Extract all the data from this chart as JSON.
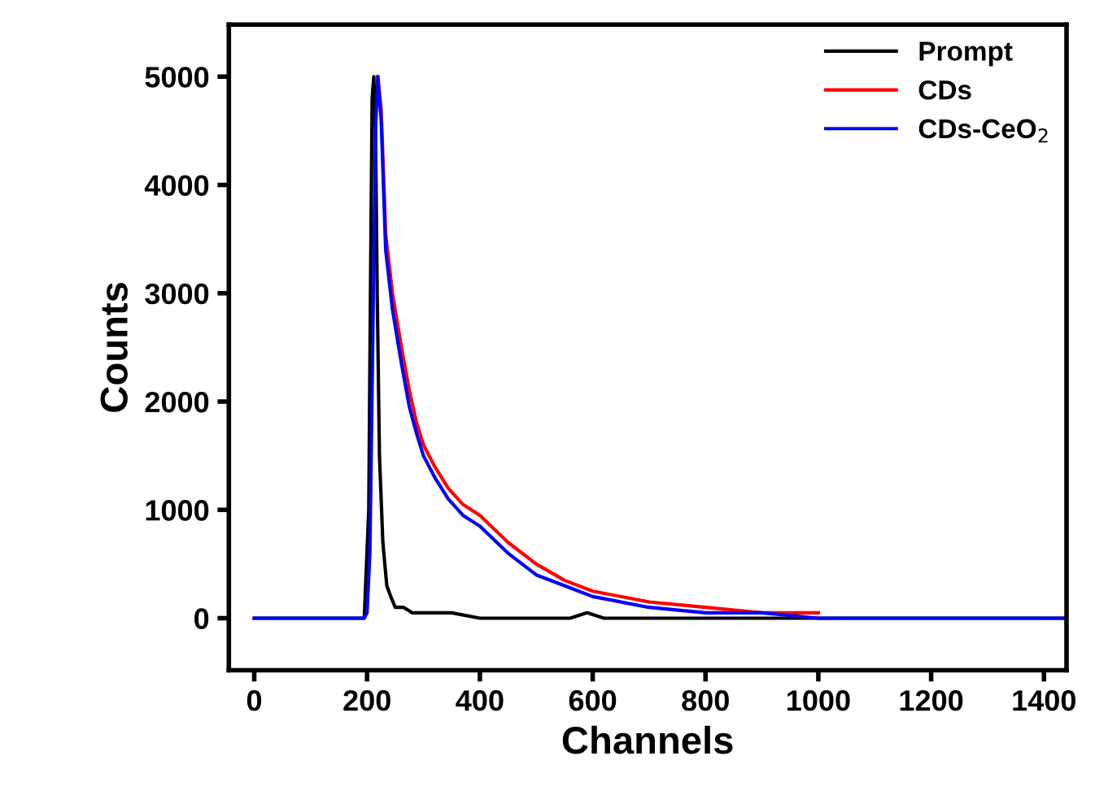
{
  "chart_data": {
    "type": "line",
    "xlabel": "Channels",
    "ylabel": "Counts",
    "xlim": [
      -45,
      1440
    ],
    "ylim": [
      -480,
      5480
    ],
    "xticks": [
      0,
      200,
      400,
      600,
      800,
      1000,
      1200,
      1400
    ],
    "yticks": [
      0,
      1000,
      2000,
      3000,
      4000,
      5000
    ],
    "grid": false,
    "legend": "top right",
    "marker": "none",
    "line_style": "solid",
    "series": [
      {
        "name": "Prompt",
        "color": "#000000",
        "x": [
          0,
          195,
          203,
          206,
          209,
          212,
          215,
          218,
          222,
          228,
          235,
          242,
          250,
          265,
          280,
          300,
          350,
          400,
          500,
          560,
          590,
          620,
          700,
          800,
          1000,
          1200,
          1440
        ],
        "values": [
          0,
          0,
          1000,
          3000,
          4800,
          5000,
          4500,
          3000,
          1500,
          700,
          300,
          200,
          100,
          100,
          50,
          50,
          50,
          0,
          0,
          0,
          50,
          0,
          0,
          0,
          0,
          0,
          0
        ]
      },
      {
        "name": "CDs",
        "color": "#ff0000",
        "x": [
          219,
          225,
          233,
          245,
          261,
          275,
          288,
          300,
          320,
          344,
          370,
          400,
          450,
          500,
          550,
          600,
          700,
          800,
          900,
          1000
        ],
        "values": [
          5000,
          4700,
          3550,
          3000,
          2500,
          2100,
          1800,
          1600,
          1400,
          1200,
          1050,
          950,
          700,
          500,
          350,
          250,
          150,
          100,
          50,
          50
        ]
      },
      {
        "name": "CDs-CeO$_{2}$",
        "color": "#0000ff",
        "x": [
          0,
          195,
          200,
          205,
          210,
          215,
          219,
          225,
          233,
          245,
          261,
          275,
          288,
          300,
          320,
          344,
          370,
          400,
          450,
          500,
          550,
          600,
          700,
          800,
          900,
          1000,
          1100,
          1200,
          1440
        ],
        "values": [
          0,
          0,
          50,
          600,
          2500,
          4500,
          5000,
          4600,
          3400,
          2850,
          2350,
          1950,
          1700,
          1500,
          1300,
          1100,
          950,
          850,
          600,
          400,
          300,
          200,
          100,
          50,
          50,
          0,
          0,
          0,
          0
        ]
      }
    ]
  }
}
